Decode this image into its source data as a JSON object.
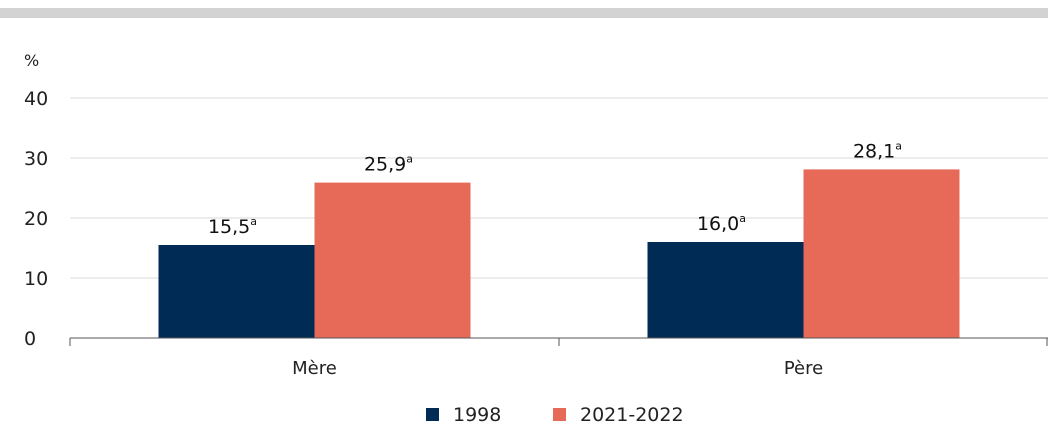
{
  "unit_label": "%",
  "chart_data": {
    "type": "bar",
    "categories": [
      "Mère",
      "Père"
    ],
    "series": [
      {
        "name": "1998",
        "values": [
          15.5,
          16.0
        ],
        "labels": [
          "15,5",
          "16,0"
        ],
        "note": [
          "a",
          "a"
        ],
        "color": "#002b54"
      },
      {
        "name": "2021-2022",
        "values": [
          25.9,
          28.1
        ],
        "labels": [
          "25,9",
          "28,1"
        ],
        "note": [
          "a",
          "a"
        ],
        "color": "#e76a58"
      }
    ],
    "yticks": [
      "0",
      "10",
      "20",
      "30",
      "40"
    ],
    "ylim": [
      0,
      40
    ],
    "grid": true,
    "legend_position": "bottom"
  }
}
